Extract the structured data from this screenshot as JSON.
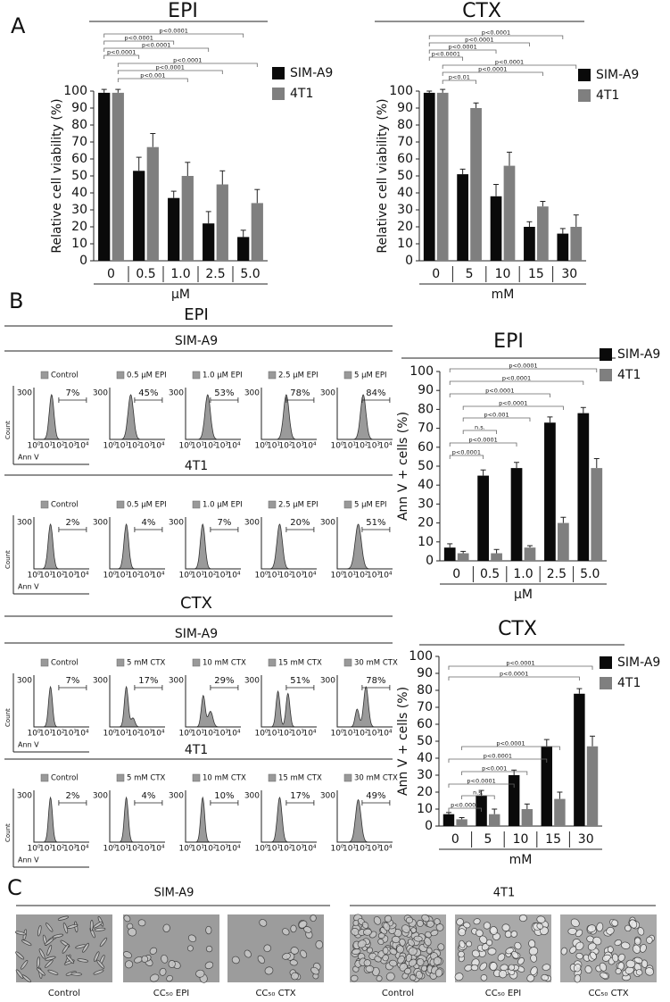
{
  "panel_labels": [
    "A",
    "B",
    "C"
  ],
  "chart_data": [
    {
      "type": "bar",
      "title": "EPI",
      "categories": [
        "0",
        "0.5",
        "1.0",
        "2.5",
        "5.0"
      ],
      "x_label": "μM",
      "y_label": "Relative cell viability (%)",
      "ylim": [
        0,
        100
      ],
      "yticks": [
        0,
        10,
        20,
        30,
        40,
        50,
        60,
        70,
        80,
        90,
        100
      ],
      "series": [
        {
          "name": "SIM-A9",
          "color": "#0a0a0a",
          "values": [
            99,
            53,
            37,
            22,
            14
          ],
          "errors": [
            2,
            8,
            4,
            7,
            4
          ]
        },
        {
          "name": "4T1",
          "color": "#7f7f7f",
          "values": [
            99,
            67,
            50,
            45,
            34
          ],
          "errors": [
            2,
            8,
            8,
            8,
            8
          ]
        }
      ],
      "significance": [
        "p<0.0001",
        "p<0.0001",
        "p<0.0001",
        "p<0.0001",
        "p<0.0001",
        "p<0.0001",
        "p<0.001"
      ]
    },
    {
      "type": "bar",
      "title": "CTX",
      "categories": [
        "0",
        "5",
        "10",
        "15",
        "30"
      ],
      "x_label": "mM",
      "y_label": "Relative cell viability (%)",
      "ylim": [
        0,
        100
      ],
      "yticks": [
        0,
        10,
        20,
        30,
        40,
        50,
        60,
        70,
        80,
        90,
        100
      ],
      "series": [
        {
          "name": "SIM-A9",
          "color": "#0a0a0a",
          "values": [
            99,
            51,
            38,
            20,
            16
          ],
          "errors": [
            1,
            3,
            7,
            3,
            3
          ]
        },
        {
          "name": "4T1",
          "color": "#7f7f7f",
          "values": [
            99,
            90,
            56,
            32,
            20
          ],
          "errors": [
            2,
            3,
            8,
            3,
            7
          ]
        }
      ],
      "significance": [
        "p<0.0001",
        "p<0.0001",
        "p<0.0001",
        "p<0.0001",
        "p<0.0001",
        "p<0.0001",
        "p<0.01"
      ]
    },
    {
      "type": "bar",
      "title": "EPI",
      "categories": [
        "0",
        "0.5",
        "1.0",
        "2.5",
        "5.0"
      ],
      "x_label": "μM",
      "y_label": "Ann V + cells (%)",
      "ylim": [
        0,
        100
      ],
      "yticks": [
        0,
        10,
        20,
        30,
        40,
        50,
        60,
        70,
        80,
        90,
        100
      ],
      "series": [
        {
          "name": "SIM-A9",
          "color": "#0a0a0a",
          "values": [
            7,
            45,
            49,
            73,
            78
          ],
          "errors": [
            2,
            3,
            3,
            3,
            3
          ]
        },
        {
          "name": "4T1",
          "color": "#7f7f7f",
          "values": [
            4,
            4,
            7,
            20,
            49
          ],
          "errors": [
            1,
            2,
            1,
            3,
            5
          ]
        }
      ],
      "significance": [
        "p<0.0001",
        "p<0.0001",
        "p<0.0001",
        "p<0.0001",
        "p<0.001",
        "n.s.",
        "p<0.0001",
        "p<0.0001"
      ]
    },
    {
      "type": "bar",
      "title": "CTX",
      "categories": [
        "0",
        "5",
        "10",
        "15",
        "30"
      ],
      "x_label": "mM",
      "y_label": "Ann V + cells (%)",
      "ylim": [
        0,
        100
      ],
      "yticks": [
        0,
        10,
        20,
        30,
        40,
        50,
        60,
        70,
        80,
        90,
        100
      ],
      "series": [
        {
          "name": "SIM-A9",
          "color": "#0a0a0a",
          "values": [
            7,
            18,
            30,
            47,
            78
          ],
          "errors": [
            1,
            3,
            3,
            4,
            3
          ]
        },
        {
          "name": "4T1",
          "color": "#7f7f7f",
          "values": [
            4,
            7,
            10,
            16,
            47
          ],
          "errors": [
            1,
            3,
            3,
            4,
            6
          ]
        }
      ],
      "significance": [
        "p<0.0001",
        "p<0.0001",
        "p<0.0001",
        "p<0.0001",
        "p<0.001",
        "p<0.0001",
        "n.s.",
        "p<0.0001"
      ]
    }
  ],
  "flow": {
    "sections": [
      {
        "title": "EPI",
        "rows": [
          {
            "cell": "SIM-A9",
            "conditions": [
              "Control",
              "0.5 μM EPI",
              "1.0 μM EPI",
              "2.5 μM EPI",
              "5 μM EPI"
            ],
            "percents": [
              "7%",
              "45%",
              "53%",
              "78%",
              "84%"
            ]
          },
          {
            "cell": "4T1",
            "conditions": [
              "Control",
              "0.5 μM EPI",
              "1.0 μM EPI",
              "2.5 μM EPI",
              "5 μM EPI"
            ],
            "percents": [
              "2%",
              "4%",
              "7%",
              "20%",
              "51%"
            ]
          }
        ]
      },
      {
        "title": "CTX",
        "rows": [
          {
            "cell": "SIM-A9",
            "conditions": [
              "Control",
              "5 mM CTX",
              "10 mM CTX",
              "15 mM CTX",
              "30 mM CTX"
            ],
            "percents": [
              "7%",
              "17%",
              "29%",
              "51%",
              "78%"
            ]
          },
          {
            "cell": "4T1",
            "conditions": [
              "Control",
              "5 mM CTX",
              "10 mM CTX",
              "15 mM CTX",
              "30 mM CTX"
            ],
            "percents": [
              "2%",
              "4%",
              "10%",
              "17%",
              "49%"
            ]
          }
        ]
      }
    ],
    "y_tick": "300",
    "x_ticks": [
      "10⁰",
      "10¹",
      "10²",
      "10³",
      "10⁴"
    ],
    "y_label": "Count",
    "x_label": "Ann V"
  },
  "micrographs": {
    "groups": [
      {
        "title": "SIM-A9",
        "captions": [
          "Control",
          "CC₅₀ EPI",
          "CC₅₀ CTX"
        ]
      },
      {
        "title": "4T1",
        "captions": [
          "Control",
          "CC₅₀ EPI",
          "CC₅₀ CTX"
        ]
      }
    ]
  }
}
